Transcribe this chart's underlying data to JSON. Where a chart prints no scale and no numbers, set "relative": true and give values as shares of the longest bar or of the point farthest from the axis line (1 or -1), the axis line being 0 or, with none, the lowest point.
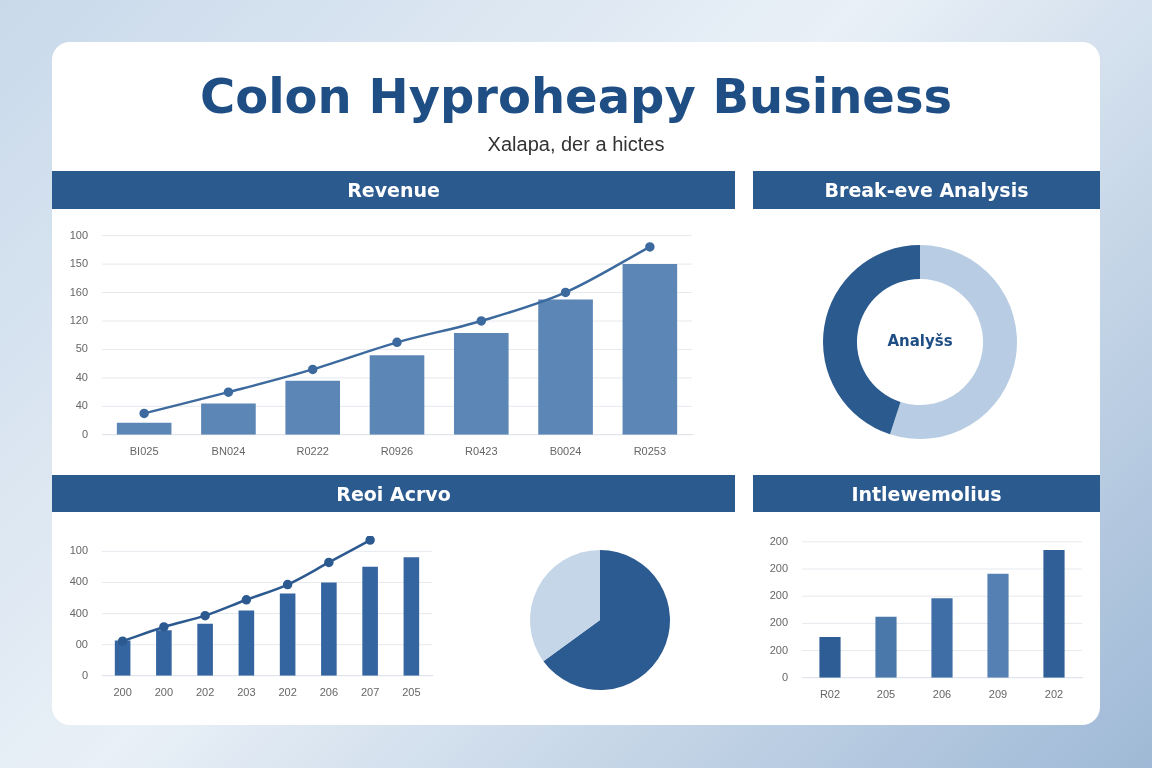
{
  "chart_data": [
    {
      "type": "other",
      "title": "Colon Hyproheapy Business",
      "subtitle": "Xalapa, der a hictes"
    },
    {
      "type": "bar",
      "title": "Revenue",
      "categories": [
        "BI025",
        "BN024",
        "R0222",
        "R0926",
        "R0423",
        "B0024",
        "R0253"
      ],
      "marker": "circle",
      "grid": "y",
      "relative": true,
      "series": [
        {
          "type": "bar",
          "color": "#5b86b6",
          "values": [
            0.064,
            0.167,
            0.288,
            0.424,
            0.542,
            0.72,
            0.909
          ]
        },
        {
          "type": "line",
          "color": "#3d6a9e",
          "values": [
            0.114,
            0.227,
            0.348,
            0.492,
            0.606,
            0.758,
            1
          ]
        }
      ],
      "annotations": [
        "0",
        "40",
        "40",
        "50",
        "120",
        "160",
        "150",
        "100"
      ]
    },
    {
      "type": "donut",
      "title": "Break-eve Analysis",
      "categories": [
        null,
        null
      ],
      "values": [
        55,
        45
      ],
      "colors": [
        "#b8cde3",
        "#2b5a8e"
      ],
      "annotations": [
        "Analyšs"
      ]
    },
    {
      "type": "bar",
      "title": "Reoi Acrvo",
      "categories": [
        "200",
        "200",
        "202",
        "203",
        "202",
        "206",
        "207",
        "205"
      ],
      "marker": "circle",
      "grid": "y",
      "relative": true,
      "series": [
        {
          "type": "bar",
          "color": "#3565a0",
          "values": [
            0.261,
            0.335,
            0.383,
            0.482,
            0.606,
            0.688,
            0.803,
            0.874
          ]
        },
        {
          "type": "line",
          "color": "#2c5a90",
          "values": [
            0.255,
            0.36,
            0.443,
            0.56,
            0.672,
            0.835,
            1,
            null
          ]
        }
      ],
      "annotations": [
        "0",
        "00",
        "400",
        "400",
        "100"
      ]
    },
    {
      "type": "pie",
      "categories": [
        null,
        null
      ],
      "values": [
        65,
        35
      ],
      "colors": [
        "#2c5b91",
        "#c5d6e8"
      ]
    },
    {
      "type": "bar",
      "title": "Intlewemolius",
      "categories": [
        "R02",
        "205",
        "206",
        "209",
        "202"
      ],
      "grid": "y",
      "relative": true,
      "values": [
        0.319,
        0.477,
        0.623,
        0.815,
        1
      ],
      "colors": [
        "#2d5d94",
        "#4a78ab",
        "#3f6ea6",
        "#5580b3",
        "#2f5f96"
      ],
      "annotations": [
        "0",
        "200",
        "200",
        "200",
        "200",
        "200"
      ]
    }
  ]
}
